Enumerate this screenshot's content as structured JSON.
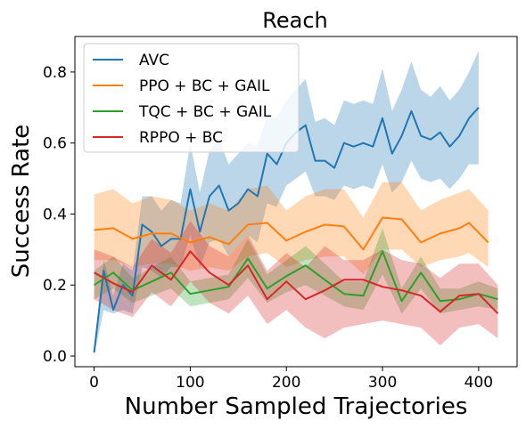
{
  "chart_data": {
    "type": "line",
    "title": "Reach",
    "xlabel": "Number Sampled Trajectories",
    "ylabel": "Success Rate",
    "xlim": [
      -20,
      440
    ],
    "ylim": [
      -0.03,
      0.9
    ],
    "xticks": [
      0,
      100,
      200,
      300,
      400
    ],
    "yticks": [
      0.0,
      0.2,
      0.4,
      0.6,
      0.8
    ],
    "legend_position": "top-left",
    "grid": false,
    "series": [
      {
        "name": "AVC",
        "color": "#1f77b4",
        "x": [
          0,
          10,
          20,
          30,
          40,
          50,
          60,
          70,
          80,
          90,
          100,
          110,
          120,
          130,
          140,
          150,
          160,
          170,
          180,
          190,
          200,
          210,
          220,
          230,
          240,
          250,
          260,
          270,
          280,
          290,
          300,
          310,
          320,
          330,
          340,
          350,
          360,
          370,
          380,
          390,
          400
        ],
        "values": [
          0.01,
          0.24,
          0.13,
          0.2,
          0.17,
          0.37,
          0.35,
          0.31,
          0.33,
          0.33,
          0.47,
          0.35,
          0.45,
          0.48,
          0.41,
          0.43,
          0.47,
          0.45,
          0.57,
          0.54,
          0.6,
          0.63,
          0.65,
          0.55,
          0.55,
          0.53,
          0.6,
          0.59,
          0.6,
          0.59,
          0.67,
          0.57,
          0.62,
          0.69,
          0.62,
          0.61,
          0.63,
          0.59,
          0.62,
          0.67,
          0.7
        ],
        "lower": [
          0.0,
          0.13,
          0.12,
          0.13,
          0.12,
          0.25,
          0.24,
          0.22,
          0.25,
          0.25,
          0.34,
          0.25,
          0.32,
          0.33,
          0.28,
          0.31,
          0.34,
          0.32,
          0.43,
          0.42,
          0.48,
          0.5,
          0.52,
          0.45,
          0.45,
          0.44,
          0.48,
          0.47,
          0.48,
          0.47,
          0.54,
          0.46,
          0.49,
          0.55,
          0.5,
          0.49,
          0.5,
          0.47,
          0.5,
          0.54,
          0.54
        ],
        "upper": [
          0.02,
          0.27,
          0.17,
          0.26,
          0.24,
          0.45,
          0.45,
          0.41,
          0.44,
          0.43,
          0.6,
          0.46,
          0.58,
          0.61,
          0.54,
          0.57,
          0.6,
          0.59,
          0.68,
          0.67,
          0.72,
          0.75,
          0.78,
          0.66,
          0.67,
          0.65,
          0.72,
          0.71,
          0.72,
          0.71,
          0.81,
          0.69,
          0.75,
          0.83,
          0.75,
          0.73,
          0.76,
          0.72,
          0.75,
          0.8,
          0.86
        ]
      },
      {
        "name": "PPO + BC + GAIL",
        "color": "#ff7f0e",
        "x": [
          0,
          20,
          40,
          60,
          80,
          100,
          120,
          140,
          160,
          180,
          200,
          220,
          240,
          260,
          280,
          300,
          320,
          340,
          360,
          380,
          390,
          410
        ],
        "values": [
          0.355,
          0.36,
          0.33,
          0.345,
          0.345,
          0.32,
          0.335,
          0.315,
          0.37,
          0.375,
          0.325,
          0.35,
          0.37,
          0.365,
          0.3,
          0.39,
          0.385,
          0.32,
          0.345,
          0.36,
          0.375,
          0.32
        ],
        "lower": [
          0.27,
          0.27,
          0.25,
          0.26,
          0.26,
          0.24,
          0.25,
          0.24,
          0.28,
          0.29,
          0.25,
          0.27,
          0.28,
          0.28,
          0.23,
          0.3,
          0.3,
          0.25,
          0.27,
          0.28,
          0.29,
          0.25
        ],
        "upper": [
          0.455,
          0.47,
          0.43,
          0.45,
          0.44,
          0.41,
          0.43,
          0.41,
          0.47,
          0.48,
          0.41,
          0.45,
          0.47,
          0.47,
          0.39,
          0.49,
          0.49,
          0.41,
          0.44,
          0.46,
          0.47,
          0.41
        ]
      },
      {
        "name": "TQC + BC + GAIL",
        "color": "#2ca02c",
        "x": [
          0,
          20,
          40,
          60,
          80,
          100,
          120,
          140,
          160,
          180,
          200,
          220,
          240,
          260,
          280,
          300,
          320,
          340,
          360,
          380,
          400,
          420
        ],
        "values": [
          0.2,
          0.235,
          0.185,
          0.21,
          0.235,
          0.175,
          0.185,
          0.195,
          0.275,
          0.19,
          0.225,
          0.255,
          0.215,
          0.175,
          0.17,
          0.295,
          0.155,
          0.235,
          0.155,
          0.16,
          0.175,
          0.16
        ],
        "lower": [
          0.16,
          0.19,
          0.15,
          0.17,
          0.19,
          0.14,
          0.15,
          0.16,
          0.22,
          0.15,
          0.18,
          0.2,
          0.17,
          0.14,
          0.13,
          0.23,
          0.12,
          0.19,
          0.12,
          0.13,
          0.14,
          0.13
        ],
        "upper": [
          0.24,
          0.28,
          0.22,
          0.25,
          0.28,
          0.21,
          0.22,
          0.23,
          0.33,
          0.23,
          0.27,
          0.31,
          0.26,
          0.21,
          0.21,
          0.36,
          0.19,
          0.28,
          0.19,
          0.19,
          0.21,
          0.19
        ]
      },
      {
        "name": "RPPO + BC",
        "color": "#d62728",
        "x": [
          0,
          20,
          40,
          60,
          80,
          100,
          120,
          140,
          160,
          180,
          200,
          220,
          240,
          260,
          280,
          300,
          320,
          340,
          360,
          380,
          400,
          420
        ],
        "values": [
          0.235,
          0.205,
          0.18,
          0.255,
          0.215,
          0.295,
          0.235,
          0.2,
          0.255,
          0.16,
          0.21,
          0.16,
          0.185,
          0.215,
          0.215,
          0.195,
          0.185,
          0.17,
          0.125,
          0.17,
          0.175,
          0.12
        ],
        "lower": [
          0.16,
          0.13,
          0.11,
          0.18,
          0.14,
          0.21,
          0.15,
          0.12,
          0.17,
          0.09,
          0.13,
          0.08,
          0.05,
          0.08,
          0.09,
          0.1,
          0.09,
          0.08,
          0.03,
          0.08,
          0.09,
          0.05
        ],
        "upper": [
          0.3,
          0.28,
          0.25,
          0.33,
          0.29,
          0.38,
          0.31,
          0.28,
          0.34,
          0.24,
          0.29,
          0.25,
          0.31,
          0.27,
          0.27,
          0.3,
          0.27,
          0.26,
          0.22,
          0.26,
          0.26,
          0.2
        ]
      }
    ]
  }
}
